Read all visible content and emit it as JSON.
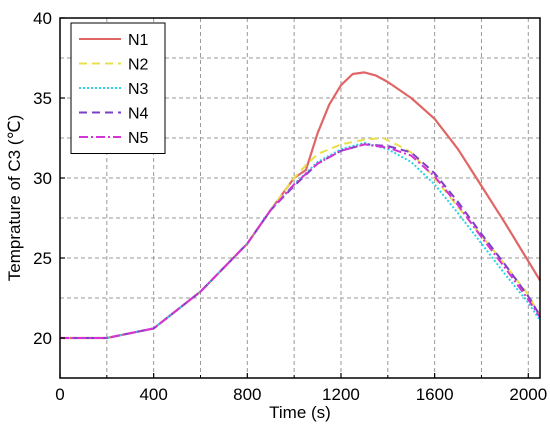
{
  "chart_data": {
    "type": "line",
    "xlabel": "Time (s)",
    "ylabel": "Temprature of C3 (℃)",
    "xlim": [
      0,
      2050
    ],
    "ylim": [
      17.5,
      40
    ],
    "xticks": [
      0,
      400,
      800,
      1200,
      1600,
      2000
    ],
    "yticks": [
      20,
      25,
      30,
      35,
      40
    ],
    "grid": true,
    "legend_position": "top-left",
    "series": [
      {
        "name": "N1",
        "color": "#e06666",
        "dash": "solid",
        "points": [
          [
            0,
            20
          ],
          [
            200,
            20
          ],
          [
            400,
            20.6
          ],
          [
            600,
            22.9
          ],
          [
            800,
            25.9
          ],
          [
            900,
            28.0
          ],
          [
            1000,
            30.0
          ],
          [
            1050,
            30.5
          ],
          [
            1100,
            32.8
          ],
          [
            1150,
            34.6
          ],
          [
            1200,
            35.8
          ],
          [
            1250,
            36.5
          ],
          [
            1300,
            36.6
          ],
          [
            1350,
            36.4
          ],
          [
            1400,
            36.0
          ],
          [
            1500,
            35.0
          ],
          [
            1600,
            33.7
          ],
          [
            1700,
            31.8
          ],
          [
            1800,
            29.5
          ],
          [
            1900,
            27.2
          ],
          [
            2000,
            24.8
          ],
          [
            2050,
            23.6
          ]
        ]
      },
      {
        "name": "N2",
        "color": "#e8e04a",
        "dash": "dashed",
        "points": [
          [
            0,
            20
          ],
          [
            200,
            20
          ],
          [
            400,
            20.6
          ],
          [
            600,
            22.9
          ],
          [
            800,
            25.9
          ],
          [
            900,
            28.0
          ],
          [
            1000,
            30.0
          ],
          [
            1050,
            30.8
          ],
          [
            1100,
            31.5
          ],
          [
            1200,
            32.1
          ],
          [
            1300,
            32.4
          ],
          [
            1380,
            32.5
          ],
          [
            1450,
            32.0
          ],
          [
            1500,
            31.6
          ],
          [
            1600,
            30.0
          ],
          [
            1700,
            28.2
          ],
          [
            1800,
            26.4
          ],
          [
            1900,
            24.6
          ],
          [
            2000,
            22.7
          ],
          [
            2050,
            21.4
          ]
        ]
      },
      {
        "name": "N3",
        "color": "#2ad4e8",
        "dash": "dotted",
        "points": [
          [
            0,
            20
          ],
          [
            200,
            20
          ],
          [
            400,
            20.6
          ],
          [
            600,
            22.9
          ],
          [
            800,
            25.9
          ],
          [
            900,
            28.0
          ],
          [
            1000,
            29.6
          ],
          [
            1100,
            31.0
          ],
          [
            1200,
            31.8
          ],
          [
            1300,
            32.2
          ],
          [
            1400,
            31.8
          ],
          [
            1500,
            31.0
          ],
          [
            1600,
            29.6
          ],
          [
            1700,
            27.8
          ],
          [
            1800,
            25.9
          ],
          [
            1900,
            24.0
          ],
          [
            2000,
            22.2
          ],
          [
            2050,
            21.1
          ]
        ]
      },
      {
        "name": "N4",
        "color": "#7b3fc9",
        "dash": "dashed",
        "points": [
          [
            0,
            20
          ],
          [
            200,
            20
          ],
          [
            400,
            20.6
          ],
          [
            600,
            22.9
          ],
          [
            800,
            25.9
          ],
          [
            900,
            28.0
          ],
          [
            1000,
            29.5
          ],
          [
            1100,
            30.9
          ],
          [
            1200,
            31.7
          ],
          [
            1300,
            32.1
          ],
          [
            1400,
            32.0
          ],
          [
            1500,
            31.6
          ],
          [
            1600,
            30.3
          ],
          [
            1700,
            28.5
          ],
          [
            1800,
            26.5
          ],
          [
            1900,
            24.6
          ],
          [
            2000,
            22.6
          ],
          [
            2050,
            21.4
          ]
        ]
      },
      {
        "name": "N5",
        "color": "#d433d8",
        "dash": "dashdot",
        "points": [
          [
            0,
            20
          ],
          [
            200,
            20
          ],
          [
            400,
            20.6
          ],
          [
            600,
            22.9
          ],
          [
            800,
            25.9
          ],
          [
            900,
            28.0
          ],
          [
            1000,
            29.6
          ],
          [
            1100,
            30.9
          ],
          [
            1200,
            31.7
          ],
          [
            1300,
            32.1
          ],
          [
            1400,
            31.9
          ],
          [
            1500,
            31.4
          ],
          [
            1600,
            30.1
          ],
          [
            1700,
            28.3
          ],
          [
            1800,
            26.3
          ],
          [
            1900,
            24.4
          ],
          [
            2000,
            22.4
          ],
          [
            2050,
            21.3
          ]
        ]
      }
    ]
  }
}
